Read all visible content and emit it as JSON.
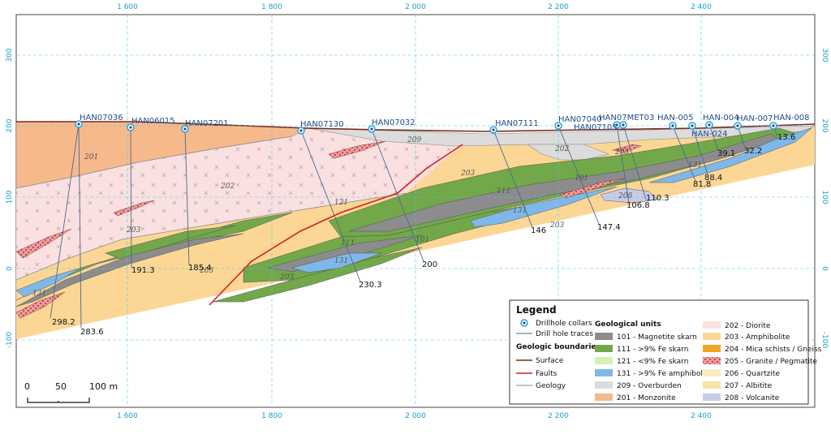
{
  "axes": {
    "x_ticks": [
      "1 600",
      "1 800",
      "2 000",
      "2 200",
      "2 400"
    ],
    "y_ticks": [
      "300",
      "200",
      "100",
      "0",
      "-100"
    ]
  },
  "colors": {
    "magnetite": "#8c8c8c",
    "skarn_high": "#72a849",
    "skarn_low": "#d5f2b0",
    "amphibolite_fe": "#7fb8e8",
    "overburden": "#dcdcdc",
    "monzonite": "#f6b98c",
    "diorite": "#fae0e0",
    "amphibolite": "#fbd695",
    "mica": "#f2a324",
    "granite": "#f19a9a",
    "quartzite": "#f9eec0",
    "albitite": "#f5e6a3",
    "volcanite": "#c8cbe6",
    "surface": "#7a2a1c",
    "fault": "#d62020",
    "geology_line": "#8a8a8a",
    "collar": "#29a3d6",
    "grid": "#4cc8ee"
  },
  "drillholes": [
    {
      "name": "HAN07036",
      "depth": "298.2"
    },
    {
      "name": "HAN07036",
      "depth": "283.6"
    },
    {
      "name": "HAN06015",
      "depth": "191.3"
    },
    {
      "name": "HAN07201",
      "depth": "185.4"
    },
    {
      "name": "HAN07130",
      "depth": "230.3"
    },
    {
      "name": "HAN07032",
      "depth": "200"
    },
    {
      "name": "HAN07111",
      "depth": "146"
    },
    {
      "name": "HAN07040",
      "depth": "147.4"
    },
    {
      "name": "HAN07105",
      "depth": ""
    },
    {
      "name": "HAN07MET03",
      "depth": "106.8"
    },
    {
      "name": "HAN07MET03",
      "depth": "110.3"
    },
    {
      "name": "HAN-005",
      "depth": "81.8"
    },
    {
      "name": "HAN-024",
      "depth": "88.4"
    },
    {
      "name": "HAN-004",
      "depth": "39.1"
    },
    {
      "name": "HAN-007",
      "depth": "32.2"
    },
    {
      "name": "HAN-008",
      "depth": "13.6"
    }
  ],
  "unit_codes": [
    "201",
    "202",
    "203",
    "209",
    "111",
    "131",
    "101",
    "121",
    "205",
    "208"
  ],
  "legend": {
    "title": "Legend",
    "collars": "Drillhole collars",
    "traces": "Drill hole traces",
    "boundaries_head": "Geologic boundaries",
    "surface": "Surface",
    "faults": "Faults",
    "geology": "Geology",
    "units_head": "Geological units",
    "units_left": [
      {
        "label": "101 - Magnetite skarn",
        "color": "#8c8c8c"
      },
      {
        "label": "111 - >9% Fe skarn",
        "color": "#72a849"
      },
      {
        "label": "121 - <9% Fe skarn",
        "color": "#d5f2b0"
      },
      {
        "label": "131 - >9% Fe amphibolite",
        "color": "#7fb8e8"
      },
      {
        "label": "209 - Overburden",
        "color": "#dcdcdc"
      },
      {
        "label": "201 - Monzonite",
        "color": "#f6b98c"
      }
    ],
    "units_right": [
      {
        "label": "202 - Diorite",
        "color": "#fae0e0"
      },
      {
        "label": "203 - Amphibolite",
        "color": "#fbd695"
      },
      {
        "label": "204 - Mica schists / Gneiss",
        "color": "#f2a324"
      },
      {
        "label": "205 - Granite / Pegmatite",
        "color": "#f19a9a"
      },
      {
        "label": "206 - Quartzite",
        "color": "#f9eec0"
      },
      {
        "label": "207 - Albitite",
        "color": "#f5e6a3"
      },
      {
        "label": "208 - Volcanite",
        "color": "#c8cbe6"
      }
    ]
  },
  "scale_bar": {
    "labels": [
      "0",
      "50",
      "100 m"
    ]
  }
}
